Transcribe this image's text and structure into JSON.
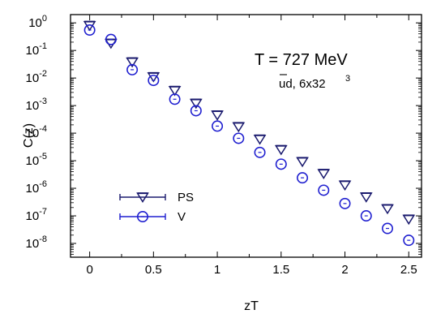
{
  "chart_data": {
    "type": "scatter",
    "xlabel": "zT",
    "ylabel": "C(z)",
    "xlim": [
      -0.15,
      2.6
    ],
    "ylim_log10": [
      -8.5,
      0.3
    ],
    "yscale": "log",
    "grid": false,
    "legend_position": "lower-left",
    "x_ticks": [
      "0",
      "0.5",
      "1",
      "1.5",
      "2",
      "2.5"
    ],
    "x_tick_values": [
      0,
      0.5,
      1,
      1.5,
      2,
      2.5
    ],
    "y_tick_base": "10",
    "y_tick_exponents": [
      "0",
      "-1",
      "-2",
      "-3",
      "-4",
      "-5",
      "-6",
      "-7",
      "-8"
    ],
    "annotations": {
      "temperature": "T = 727 MeV",
      "flavor_prefix": "ud, 6x32",
      "flavor_exp": "3"
    },
    "series": [
      {
        "name": "PS",
        "marker": "triangle-down",
        "color": "#1a1a6e",
        "x": [
          0,
          0.1667,
          0.3333,
          0.5,
          0.6667,
          0.8333,
          1.0,
          1.1667,
          1.3333,
          1.5,
          1.6667,
          1.8333,
          2.0,
          2.1667,
          2.3333,
          2.5
        ],
        "y": [
          0.8,
          0.18,
          0.038,
          0.011,
          0.0035,
          0.0012,
          0.00045,
          0.00017,
          6e-05,
          2.5e-05,
          9.2e-06,
          3.4e-06,
          1.3e-06,
          4.8e-07,
          1.8e-07,
          7.5e-08
        ]
      },
      {
        "name": "V",
        "marker": "circle",
        "color": "#1f1fd0",
        "x": [
          0,
          0.1667,
          0.3333,
          0.5,
          0.6667,
          0.8333,
          1.0,
          1.1667,
          1.3333,
          1.5,
          1.6667,
          1.8333,
          2.0,
          2.1667,
          2.3333,
          2.5
        ],
        "y": [
          0.55,
          0.25,
          0.02,
          0.0082,
          0.0017,
          0.00065,
          0.00018,
          6.5e-05,
          2e-05,
          7.5e-06,
          2.4e-06,
          8.5e-07,
          2.8e-07,
          1e-07,
          3.5e-08,
          1.3e-08
        ]
      }
    ]
  }
}
